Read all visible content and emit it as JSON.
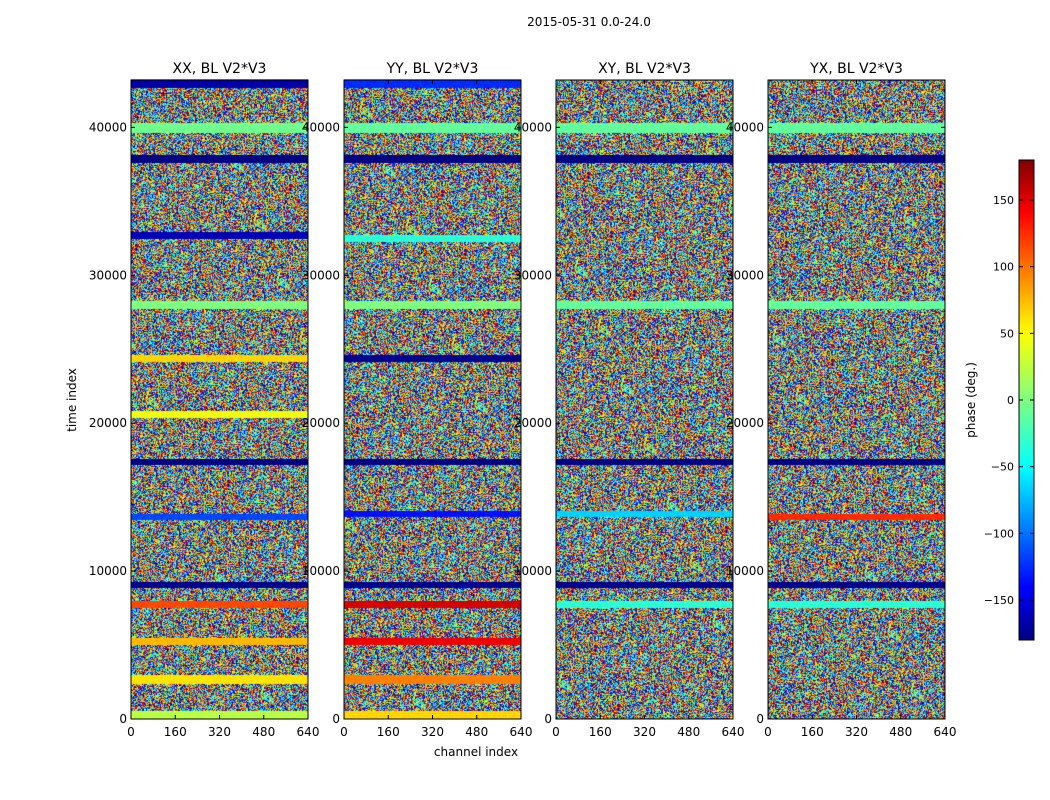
{
  "figure": {
    "suptitle": "2015-05-31 0.0-24.0"
  },
  "chart_data": [
    {
      "type": "heatmap",
      "title": "XX, BL V2*V3",
      "xlabel": "",
      "ylabel": "time index",
      "xlim": [
        0,
        640
      ],
      "ylim": [
        0,
        43200
      ],
      "xticks": [
        "0",
        "160",
        "320",
        "480",
        "640"
      ],
      "yticks": [
        "0",
        "10000",
        "20000",
        "30000",
        "40000"
      ],
      "bands": [
        {
          "t": 43000,
          "h": 500,
          "phase": -165
        },
        {
          "t": 40000,
          "h": 500,
          "phase": -5
        },
        {
          "t": 37900,
          "h": 450,
          "phase": -180
        },
        {
          "t": 32700,
          "h": 350,
          "phase": -160
        },
        {
          "t": 28000,
          "h": 400,
          "phase": 0
        },
        {
          "t": 24400,
          "h": 350,
          "phase": 60
        },
        {
          "t": 20600,
          "h": 350,
          "phase": 40
        },
        {
          "t": 17400,
          "h": 250,
          "phase": -180
        },
        {
          "t": 13700,
          "h": 300,
          "phase": -110
        },
        {
          "t": 9100,
          "h": 300,
          "phase": -175
        },
        {
          "t": 7800,
          "h": 350,
          "phase": 110
        },
        {
          "t": 5300,
          "h": 350,
          "phase": 70
        },
        {
          "t": 2700,
          "h": 450,
          "phase": 55
        },
        {
          "t": 300,
          "h": 450,
          "phase": 20
        }
      ]
    },
    {
      "type": "heatmap",
      "title": "YY, BL V2*V3",
      "xlabel": "channel index",
      "ylabel": "",
      "xlim": [
        0,
        640
      ],
      "ylim": [
        0,
        43200
      ],
      "xticks": [
        "0",
        "160",
        "320",
        "480",
        "640"
      ],
      "yticks": [
        "0",
        "10000",
        "20000",
        "30000",
        "40000"
      ],
      "bands": [
        {
          "t": 43000,
          "h": 500,
          "phase": -120
        },
        {
          "t": 40000,
          "h": 500,
          "phase": -10
        },
        {
          "t": 37900,
          "h": 450,
          "phase": -180
        },
        {
          "t": 32500,
          "h": 350,
          "phase": -30
        },
        {
          "t": 28000,
          "h": 400,
          "phase": 0
        },
        {
          "t": 24400,
          "h": 300,
          "phase": -175
        },
        {
          "t": 17400,
          "h": 250,
          "phase": -180
        },
        {
          "t": 13900,
          "h": 300,
          "phase": -130
        },
        {
          "t": 9100,
          "h": 300,
          "phase": -175
        },
        {
          "t": 7800,
          "h": 350,
          "phase": 150
        },
        {
          "t": 5300,
          "h": 350,
          "phase": 140
        },
        {
          "t": 2700,
          "h": 450,
          "phase": 90
        },
        {
          "t": 300,
          "h": 450,
          "phase": 60
        }
      ]
    },
    {
      "type": "heatmap",
      "title": "XY, BL V2*V3",
      "xlabel": "",
      "ylabel": "",
      "xlim": [
        0,
        640
      ],
      "ylim": [
        0,
        43200
      ],
      "xticks": [
        "0",
        "160",
        "320",
        "480",
        "640"
      ],
      "yticks": [
        "0",
        "10000",
        "20000",
        "30000",
        "40000"
      ],
      "bands": [
        {
          "t": 40000,
          "h": 500,
          "phase": -10
        },
        {
          "t": 37900,
          "h": 450,
          "phase": -180
        },
        {
          "t": 28000,
          "h": 400,
          "phase": -10
        },
        {
          "t": 17400,
          "h": 250,
          "phase": -180
        },
        {
          "t": 13900,
          "h": 300,
          "phase": -60
        },
        {
          "t": 9100,
          "h": 300,
          "phase": -175
        },
        {
          "t": 7800,
          "h": 350,
          "phase": -30
        }
      ]
    },
    {
      "type": "heatmap",
      "title": "YX, BL V2*V3",
      "xlabel": "",
      "ylabel": "",
      "xlim": [
        0,
        640
      ],
      "ylim": [
        0,
        43200
      ],
      "xticks": [
        "0",
        "160",
        "320",
        "480",
        "640"
      ],
      "yticks": [
        "0",
        "10000",
        "20000",
        "30000",
        "40000"
      ],
      "bands": [
        {
          "t": 40000,
          "h": 500,
          "phase": -10
        },
        {
          "t": 37900,
          "h": 450,
          "phase": -180
        },
        {
          "t": 28000,
          "h": 400,
          "phase": -10
        },
        {
          "t": 17400,
          "h": 250,
          "phase": -180
        },
        {
          "t": 13700,
          "h": 300,
          "phase": 120
        },
        {
          "t": 9100,
          "h": 300,
          "phase": -175
        },
        {
          "t": 7800,
          "h": 350,
          "phase": -30
        }
      ]
    }
  ],
  "colorbar": {
    "label": "phase (deg.)",
    "range": [
      -180,
      180
    ],
    "ticks": [
      "150",
      "100",
      "50",
      "0",
      "−50",
      "−100",
      "−150"
    ],
    "tick_values": [
      150,
      100,
      50,
      0,
      -50,
      -100,
      -150
    ],
    "colormap": "jet",
    "colors": [
      "#00007f",
      "#0000ff",
      "#00ffff",
      "#7fff7f",
      "#ffff00",
      "#ff0000",
      "#7f0000"
    ]
  }
}
